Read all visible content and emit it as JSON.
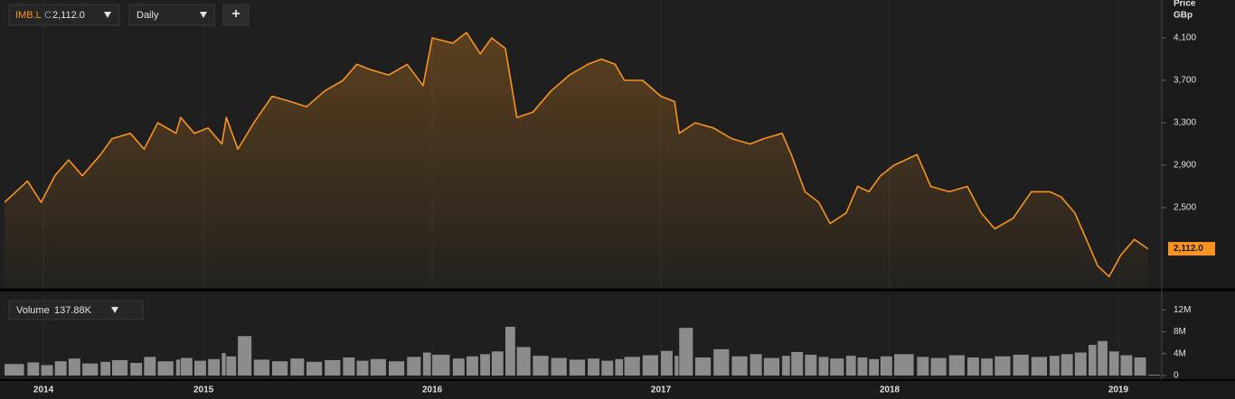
{
  "chart_data": {
    "type": "line",
    "interval": "Daily",
    "add_button": "+",
    "close_prefix": "C",
    "close_label": "2,112.0",
    "y_axis_label": "Price",
    "y_unit": "GBp",
    "xlim": [
      2014.11,
      2019.19
    ],
    "xticks": [
      {
        "value": 2014.3,
        "label": "2014"
      },
      2015,
      2016,
      2017,
      2018,
      2019
    ],
    "ylim": [
      1734,
      4457
    ],
    "yticks": [
      {
        "value": 2500,
        "label": "2,500"
      },
      {
        "value": 2900,
        "label": "2,900"
      },
      {
        "value": 3300,
        "label": "3,300"
      },
      {
        "value": 3700,
        "label": "3,700"
      },
      {
        "value": 4100,
        "label": "4,100"
      }
    ],
    "grid": true,
    "x": [
      2014.13,
      2014.23,
      2014.29,
      2014.35,
      2014.41,
      2014.47,
      2014.55,
      2014.6,
      2014.68,
      2014.74,
      2014.8,
      2014.88,
      2014.9,
      2014.96,
      2015.02,
      2015.08,
      2015.1,
      2015.15,
      2015.22,
      2015.3,
      2015.38,
      2015.45,
      2015.53,
      2015.61,
      2015.67,
      2015.73,
      2015.81,
      2015.89,
      2015.96,
      2016.0,
      2016.09,
      2016.15,
      2016.21,
      2016.26,
      2016.32,
      2016.37,
      2016.44,
      2016.52,
      2016.6,
      2016.68,
      2016.74,
      2016.8,
      2016.84,
      2016.92,
      2017.0,
      2017.06,
      2017.08,
      2017.15,
      2017.23,
      2017.31,
      2017.39,
      2017.45,
      2017.53,
      2017.57,
      2017.63,
      2017.69,
      2017.74,
      2017.81,
      2017.86,
      2017.91,
      2017.96,
      2018.02,
      2018.12,
      2018.18,
      2018.26,
      2018.34,
      2018.4,
      2018.46,
      2018.54,
      2018.62,
      2018.7,
      2018.75,
      2018.81,
      2018.87,
      2018.91,
      2018.96,
      2019.01,
      2019.07,
      2019.13
    ],
    "series": [
      {
        "name": "IMB.L",
        "color": "#f7931e",
        "values": [
          2550,
          2750,
          2550,
          2800,
          2950,
          2800,
          3000,
          3150,
          3200,
          3050,
          3300,
          3200,
          3350,
          3200,
          3250,
          3100,
          3350,
          3050,
          3300,
          3550,
          3500,
          3450,
          3600,
          3700,
          3850,
          3800,
          3750,
          3850,
          3650,
          4100,
          4050,
          4150,
          3950,
          4100,
          4000,
          3350,
          3400,
          3600,
          3750,
          3850,
          3900,
          3850,
          3700,
          3700,
          3550,
          3500,
          3200,
          3300,
          3250,
          3150,
          3100,
          3150,
          3200,
          3000,
          2650,
          2550,
          2350,
          2450,
          2700,
          2650,
          2800,
          2900,
          3000,
          2700,
          2650,
          2700,
          2450,
          2300,
          2400,
          2650,
          2650,
          2600,
          2450,
          2150,
          1950,
          1850,
          2050,
          2200,
          2112
        ]
      }
    ],
    "volume": {
      "label": "Volume",
      "value_label": "137.88K",
      "color": "#8c8c8c",
      "ylim": [
        0,
        14500000
      ],
      "yticks": [
        0,
        {
          "value": 4000000,
          "label": "4M"
        },
        {
          "value": 8000000,
          "label": "8M"
        },
        {
          "value": 12000000,
          "label": "12M"
        }
      ],
      "values": [
        2100000,
        2400000,
        1900000,
        2600000,
        3100000,
        2200000,
        2500000,
        2800000,
        2300000,
        3400000,
        2600000,
        2900000,
        3200000,
        2700000,
        3000000,
        4100000,
        3500000,
        7200000,
        2900000,
        2600000,
        3100000,
        2500000,
        2800000,
        3300000,
        2700000,
        3000000,
        2600000,
        3400000,
        4200000,
        3800000,
        3100000,
        3500000,
        3900000,
        4400000,
        8900000,
        5200000,
        3600000,
        3200000,
        2900000,
        3100000,
        2700000,
        3000000,
        3400000,
        3700000,
        4500000,
        3600000,
        8700000,
        3300000,
        4800000,
        3500000,
        3900000,
        3200000,
        3600000,
        4300000,
        3800000,
        3400000,
        3100000,
        3600000,
        3300000,
        3000000,
        3500000,
        3900000,
        3400000,
        3200000,
        3700000,
        3300000,
        3100000,
        3500000,
        3800000,
        3400000,
        3600000,
        3900000,
        4200000,
        5600000,
        6300000,
        4400000,
        3700000,
        3300000,
        137880
      ]
    }
  }
}
